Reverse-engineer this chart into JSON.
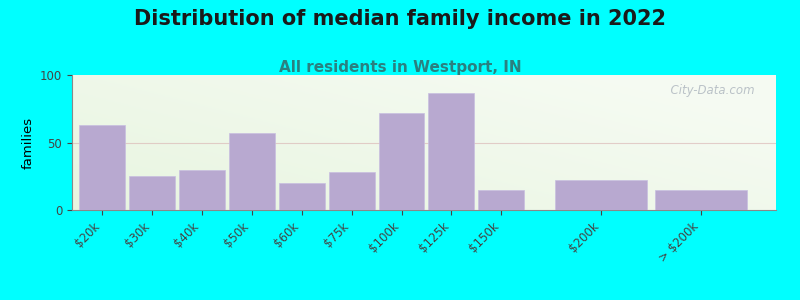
{
  "title": "Distribution of median family income in 2022",
  "subtitle": "All residents in Westport, IN",
  "categories": [
    "$20k",
    "$30k",
    "$40k",
    "$50k",
    "$60k",
    "$75k",
    "$100k",
    "$125k",
    "$150k",
    "$200k",
    "> $200k"
  ],
  "values": [
    63,
    25,
    30,
    57,
    20,
    28,
    72,
    87,
    15,
    22,
    15
  ],
  "bar_color": "#b8a9d0",
  "bar_edgecolor": "#c8bfe0",
  "ylabel": "families",
  "ylim": [
    0,
    100
  ],
  "yticks": [
    0,
    50,
    100
  ],
  "bg_color": "#e8f5e0",
  "outer_bg": "#00ffff",
  "title_fontsize": 15,
  "subtitle_fontsize": 11,
  "watermark": "  City-Data.com",
  "grid_color": "#d8b0b0",
  "grid_alpha": 0.6,
  "bar_widths": [
    1.0,
    1.0,
    1.0,
    1.0,
    1.0,
    1.0,
    1.0,
    1.0,
    1.0,
    2.0,
    2.0
  ],
  "bar_positions": [
    0.5,
    1.5,
    2.5,
    3.5,
    4.5,
    5.5,
    6.5,
    7.5,
    8.5,
    10.5,
    12.5
  ]
}
